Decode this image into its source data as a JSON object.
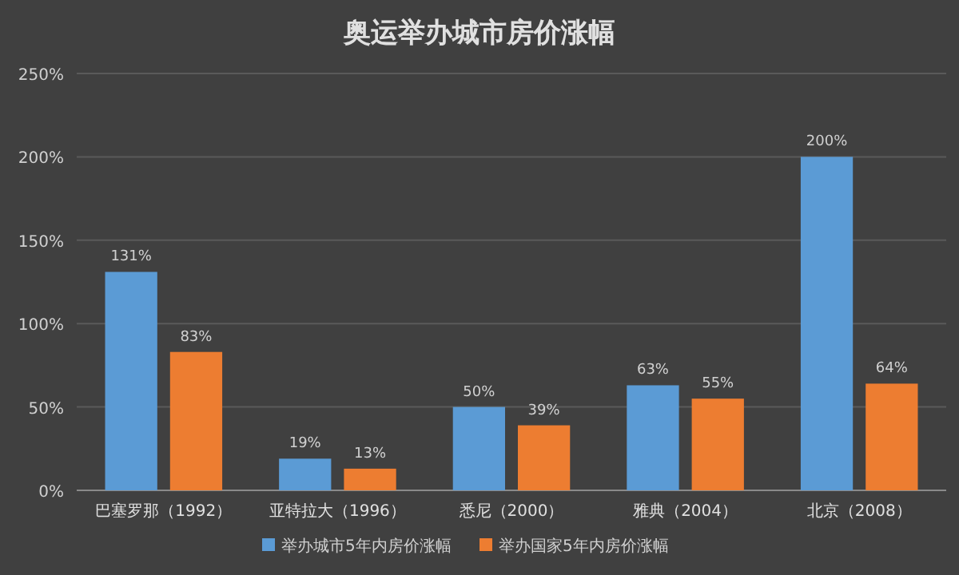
{
  "chart_data": {
    "type": "bar",
    "title": "奥运举办城市房价涨幅",
    "categories": [
      "巴塞罗那（1992）",
      "亚特拉大（1996）",
      "悉尼（2000）",
      "雅典（2004）",
      "北京（2008）"
    ],
    "series": [
      {
        "name": "举办城市5年内房价涨幅",
        "color": "#5b9bd5",
        "values": [
          131,
          19,
          50,
          63,
          200
        ],
        "value_labels": [
          "131%",
          "19%",
          "50%",
          "63%",
          "200%"
        ]
      },
      {
        "name": "举办国家5年内房价涨幅",
        "color": "#ed7d31",
        "values": [
          83,
          13,
          39,
          55,
          64
        ],
        "value_labels": [
          "83%",
          "13%",
          "39%",
          "55%",
          "64%"
        ]
      }
    ],
    "ylim": [
      0,
      250
    ],
    "yticks": [
      {
        "value": 0,
        "label": "0%"
      },
      {
        "value": 50,
        "label": "50%"
      },
      {
        "value": 100,
        "label": "100%"
      },
      {
        "value": 150,
        "label": "150%"
      },
      {
        "value": 200,
        "label": "200%"
      },
      {
        "value": 250,
        "label": "250%"
      }
    ],
    "grid": "y",
    "legend": "bottom"
  }
}
